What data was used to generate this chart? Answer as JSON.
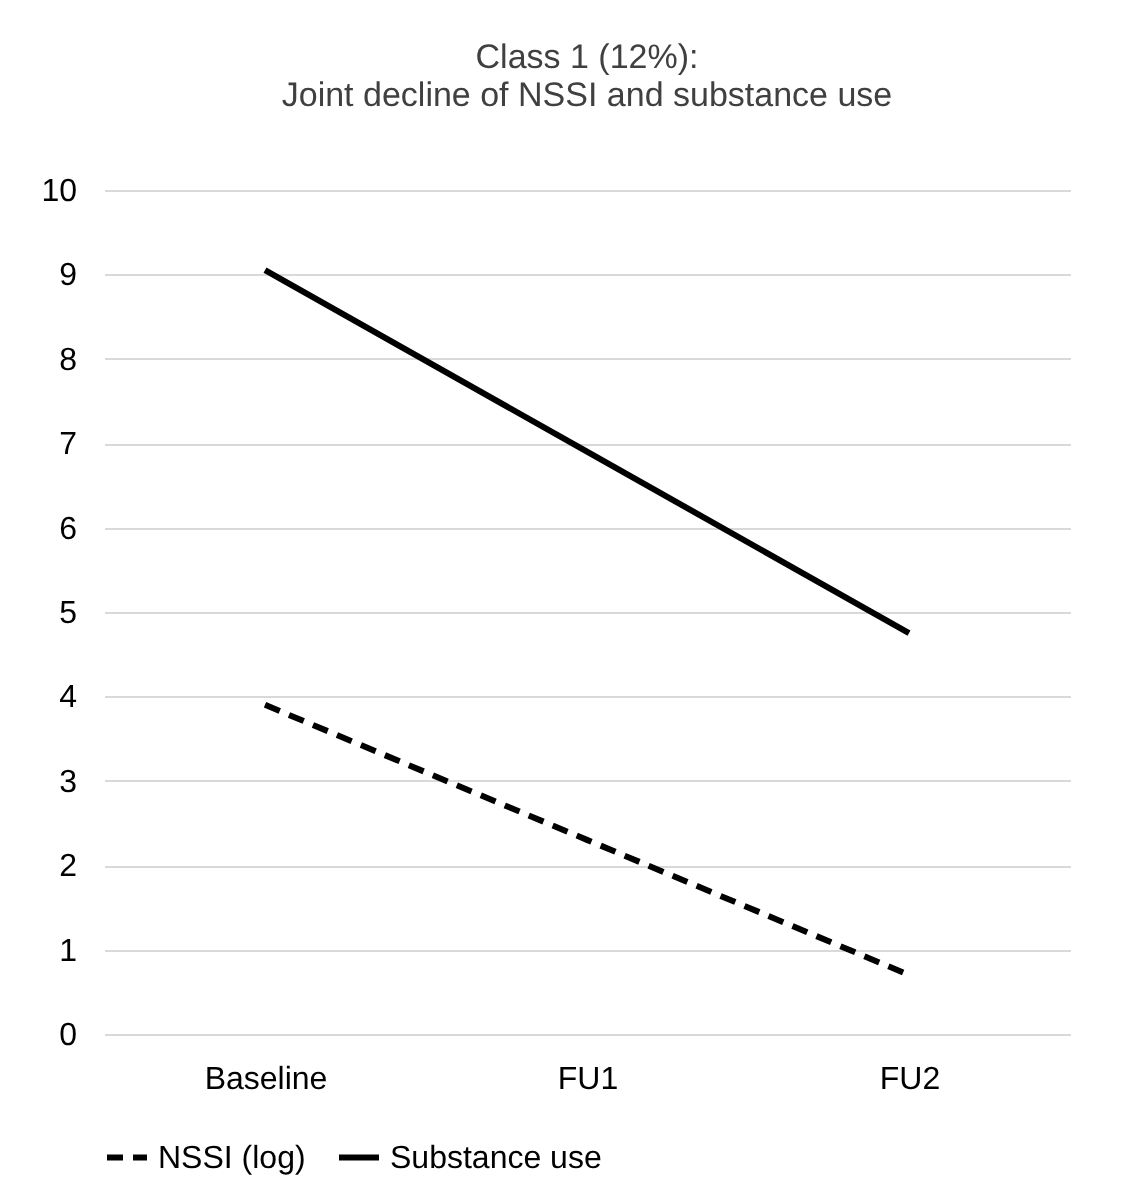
{
  "chart_data": {
    "type": "line",
    "title": "Class 1 (12%):\nJoint decline of NSSI and substance use",
    "categories": [
      "Baseline",
      "FU1",
      "FU2"
    ],
    "series": [
      {
        "name": "NSSI (log)",
        "color": "#000000",
        "line_style": "dashed",
        "values": [
          3.9,
          2.3,
          0.7
        ]
      },
      {
        "name": "Substance use",
        "color": "#000000",
        "line_style": "solid",
        "values": [
          9.05,
          6.9,
          4.75
        ]
      }
    ],
    "ylim": [
      0,
      10
    ],
    "yticks": [
      0,
      1,
      2,
      3,
      4,
      5,
      6,
      7,
      8,
      9,
      10
    ],
    "grid": "y",
    "legend": "bottom"
  }
}
